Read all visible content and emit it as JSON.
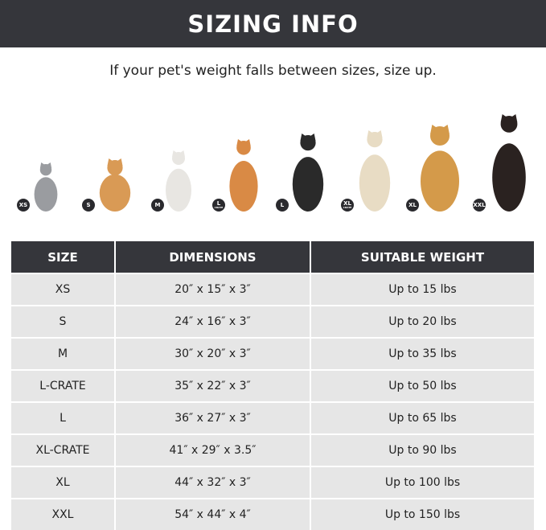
{
  "banner": {
    "title": "SIZING INFO"
  },
  "subtitle": "If your pet's weight falls between sizes, size up.",
  "pets": [
    {
      "badge": "XS",
      "sub": "",
      "animal": "cat",
      "color": "#9a9ca0"
    },
    {
      "badge": "S",
      "sub": "",
      "animal": "pomeranian",
      "color": "#d99a55"
    },
    {
      "badge": "M",
      "sub": "",
      "animal": "french-bulldog",
      "color": "#e8e6e2"
    },
    {
      "badge": "L",
      "sub": "CRATE",
      "animal": "shiba-inu",
      "color": "#d98a45"
    },
    {
      "badge": "L",
      "sub": "",
      "animal": "border-collie",
      "color": "#2a2a2a"
    },
    {
      "badge": "XL",
      "sub": "CRATE",
      "animal": "labrador",
      "color": "#e8dcc4"
    },
    {
      "badge": "XL",
      "sub": "",
      "animal": "golden-retriever",
      "color": "#d49a4a"
    },
    {
      "badge": "XXL",
      "sub": "",
      "animal": "doberman",
      "color": "#2a2220"
    }
  ],
  "table": {
    "headers": [
      "SIZE",
      "DIMENSIONS",
      "SUITABLE WEIGHT"
    ],
    "rows": [
      [
        "XS",
        "20″ x 15″ x 3″",
        "Up to 15 lbs"
      ],
      [
        "S",
        "24″ x 16″ x 3″",
        "Up to 20 lbs"
      ],
      [
        "M",
        "30″ x 20″ x 3″",
        "Up to 35 lbs"
      ],
      [
        "L-CRATE",
        "35″ x 22″ x 3″",
        "Up to 50 lbs"
      ],
      [
        "L",
        "36″ x 27″ x 3″",
        "Up to 65 lbs"
      ],
      [
        "XL-CRATE",
        "41″ x 29″ x 3.5″",
        "Up to 90 lbs"
      ],
      [
        "XL",
        "44″ x 32″ x 3″",
        "Up to 100 lbs"
      ],
      [
        "XXL",
        "54″ x 44″ x 4″",
        "Up to 150 lbs"
      ]
    ]
  }
}
